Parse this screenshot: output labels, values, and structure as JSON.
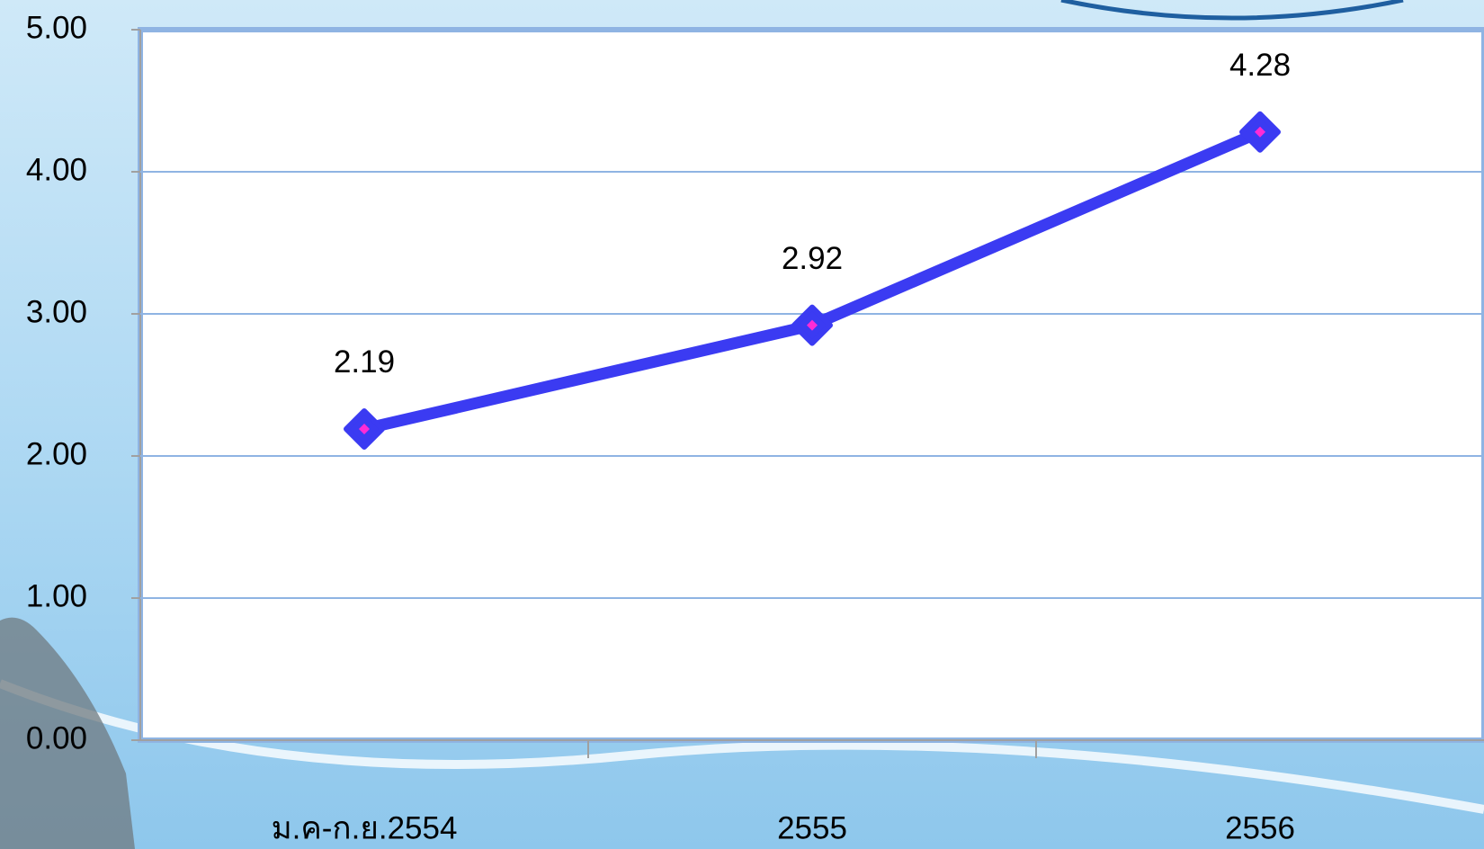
{
  "chart_data": {
    "type": "line",
    "categories": [
      "ม.ค-ก.ย.2554",
      "2555",
      "2556"
    ],
    "series": [
      {
        "name": null,
        "color": "#3b3bf2",
        "values": [
          2.19,
          2.92,
          4.28
        ]
      }
    ],
    "ylim": [
      0,
      5
    ],
    "yticks": [
      {
        "value": 0,
        "label": "0.00"
      },
      {
        "value": 1,
        "label": "1.00"
      },
      {
        "value": 2,
        "label": "2.00"
      },
      {
        "value": 3,
        "label": "3.00"
      },
      {
        "value": 4,
        "label": "4.00"
      },
      {
        "value": 5,
        "label": "5.00"
      }
    ],
    "grid": true
  }
}
